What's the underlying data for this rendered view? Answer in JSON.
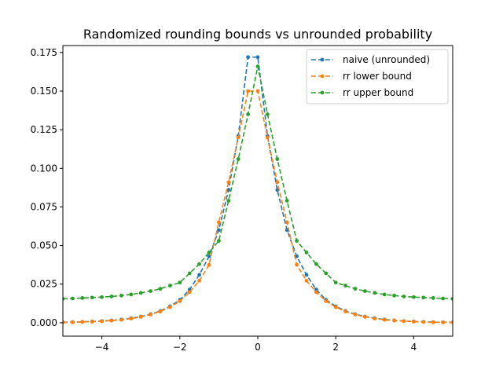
{
  "chart_data": {
    "type": "line",
    "title": "Randomized rounding bounds vs unrounded probability",
    "xlabel": "",
    "ylabel": "",
    "xlim": [
      -5,
      5
    ],
    "ylim": [
      -0.0087,
      0.1795
    ],
    "xticks": [
      -4,
      -2,
      0,
      2,
      4
    ],
    "xtick_labels": [
      "−4",
      "−2",
      "0",
      "2",
      "4"
    ],
    "yticks": [
      0.0,
      0.025,
      0.05,
      0.075,
      0.1,
      0.125,
      0.15,
      0.175
    ],
    "ytick_labels": [
      "0.000",
      "0.025",
      "0.050",
      "0.075",
      "0.100",
      "0.125",
      "0.150",
      "0.175"
    ],
    "grid": false,
    "legend_position": "top-right",
    "x": [
      -5.0,
      -4.75,
      -4.5,
      -4.25,
      -4.0,
      -3.75,
      -3.5,
      -3.25,
      -3.0,
      -2.75,
      -2.5,
      -2.25,
      -2.0,
      -1.75,
      -1.5,
      -1.25,
      -1.0,
      -0.75,
      -0.5,
      -0.25,
      0.0,
      0.25,
      0.5,
      0.75,
      1.0,
      1.25,
      1.5,
      1.75,
      2.0,
      2.25,
      2.5,
      2.75,
      3.0,
      3.25,
      3.5,
      3.75,
      4.0,
      4.25,
      4.5,
      4.75,
      5.0
    ],
    "series": [
      {
        "name": "naive (unrounded)",
        "color": "#1f77b4",
        "values": [
          0.0003,
          0.0004,
          0.0006,
          0.0008,
          0.0011,
          0.0015,
          0.0021,
          0.0029,
          0.004,
          0.0055,
          0.0076,
          0.0106,
          0.0148,
          0.0215,
          0.031,
          0.043,
          0.06,
          0.086,
          0.121,
          0.172,
          0.172,
          0.121,
          0.086,
          0.06,
          0.043,
          0.031,
          0.0215,
          0.0148,
          0.0106,
          0.0076,
          0.0055,
          0.004,
          0.0029,
          0.0021,
          0.0015,
          0.0011,
          0.0008,
          0.0006,
          0.0004,
          0.0003,
          0.0003
        ]
      },
      {
        "name": "rr lower bound",
        "color": "#ff7f0e",
        "values": [
          0.0002,
          0.0003,
          0.0005,
          0.0007,
          0.001,
          0.0014,
          0.0019,
          0.0027,
          0.0038,
          0.0053,
          0.0073,
          0.0101,
          0.014,
          0.0198,
          0.0272,
          0.0375,
          0.065,
          0.091,
          0.12,
          0.15,
          0.15,
          0.12,
          0.091,
          0.065,
          0.0375,
          0.0272,
          0.0198,
          0.014,
          0.0101,
          0.0073,
          0.0053,
          0.0038,
          0.0027,
          0.0019,
          0.0014,
          0.001,
          0.0007,
          0.0005,
          0.0003,
          0.0002,
          0.0002
        ]
      },
      {
        "name": "rr upper bound",
        "color": "#2ca02c",
        "values": [
          0.0155,
          0.0157,
          0.016,
          0.0163,
          0.0166,
          0.017,
          0.0176,
          0.0183,
          0.0193,
          0.0205,
          0.022,
          0.024,
          0.026,
          0.032,
          0.038,
          0.0455,
          0.053,
          0.079,
          0.106,
          0.135,
          0.166,
          0.135,
          0.106,
          0.079,
          0.053,
          0.0455,
          0.038,
          0.032,
          0.026,
          0.024,
          0.022,
          0.0205,
          0.0193,
          0.0183,
          0.0176,
          0.017,
          0.0166,
          0.0163,
          0.016,
          0.0157,
          0.0155
        ]
      }
    ]
  }
}
